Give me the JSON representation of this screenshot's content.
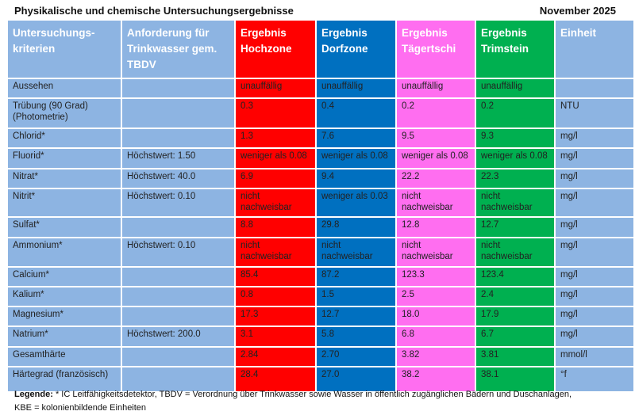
{
  "title": "Physikalische und chemische Untersuchungsergebnisse",
  "date": "November 2025",
  "headers": [
    "Untersuchungs-\nkriterien",
    "Anforderung für Trinkwasser gem. TBDV",
    "Ergebnis Hochzone",
    "Ergebnis Dorfzone",
    "Ergebnis Tägertschi",
    "Ergebnis Trimstein",
    "Einheit"
  ],
  "zone_colors": {
    "Hochzone": "#FF0000",
    "Dorfzone": "#0070C0",
    "Tägertschi": "#FF6EF0",
    "Trimstein": "#00B050",
    "base": "#8DB4E2"
  },
  "rows": [
    [
      "Aussehen",
      "",
      "unauffällig",
      "unauffällig",
      "unauffällig",
      "unauffällig",
      ""
    ],
    [
      "Trübung (90 Grad) (Photometrie)",
      "",
      "0.3",
      "0.4",
      "0.2",
      "0.2",
      "NTU"
    ],
    [
      "Chlorid*",
      "",
      "1.3",
      "7.6",
      "9.5",
      "9.3",
      "mg/l"
    ],
    [
      "Fluorid*",
      "Höchstwert: 1.50",
      "weniger als 0.08",
      "weniger als 0.08",
      "weniger als 0.08",
      "weniger als 0.08",
      "mg/l"
    ],
    [
      "Nitrat*",
      "Höchstwert: 40.0",
      "6.9",
      "9.4",
      "22.2",
      "22.3",
      "mg/l"
    ],
    [
      "Nitrit*",
      "Höchstwert: 0.10",
      "nicht nachweisbar",
      "weniger als 0.03",
      "nicht nachweisbar",
      "nicht nachweisbar",
      "mg/l"
    ],
    [
      "Sulfat*",
      "",
      "8.8",
      "29.8",
      "12.8",
      "12.7",
      "mg/l"
    ],
    [
      "Ammonium*",
      "Höchstwert: 0.10",
      "nicht nachweisbar",
      "nicht nachweisbar",
      "nicht nachweisbar",
      "nicht nachweisbar",
      "mg/l"
    ],
    [
      "Calcium*",
      "",
      "85.4",
      "87.2",
      "123.3",
      "123.4",
      "mg/l"
    ],
    [
      "Kalium*",
      "",
      "0.8",
      "1.5",
      "2.5",
      "2.4",
      "mg/l"
    ],
    [
      "Magnesium*",
      "",
      "17.3",
      "12.7",
      "18.0",
      "17.9",
      "mg/l"
    ],
    [
      "Natrium*",
      "Höchstwert: 200.0",
      "3.1",
      "5.8",
      "6.8",
      "6.7",
      "mg/l"
    ],
    [
      "Gesamthärte",
      "",
      "2.84",
      "2.70",
      "3.82",
      "3.81",
      "mmol/l"
    ],
    [
      "Härtegrad (französisch)",
      "",
      "28.4",
      "27.0",
      "38.2",
      "38.1",
      "°f"
    ]
  ],
  "legend": {
    "label": "Legende:",
    "text": " * IC Leitfähigkeitsdetektor, TBDV = Verordnung über Trinkwasser sowie Wasser in öffentlich zugänglichen Bädern und Duschanlagen,",
    "text2": "KBE = kolonienbildende Einheiten"
  }
}
